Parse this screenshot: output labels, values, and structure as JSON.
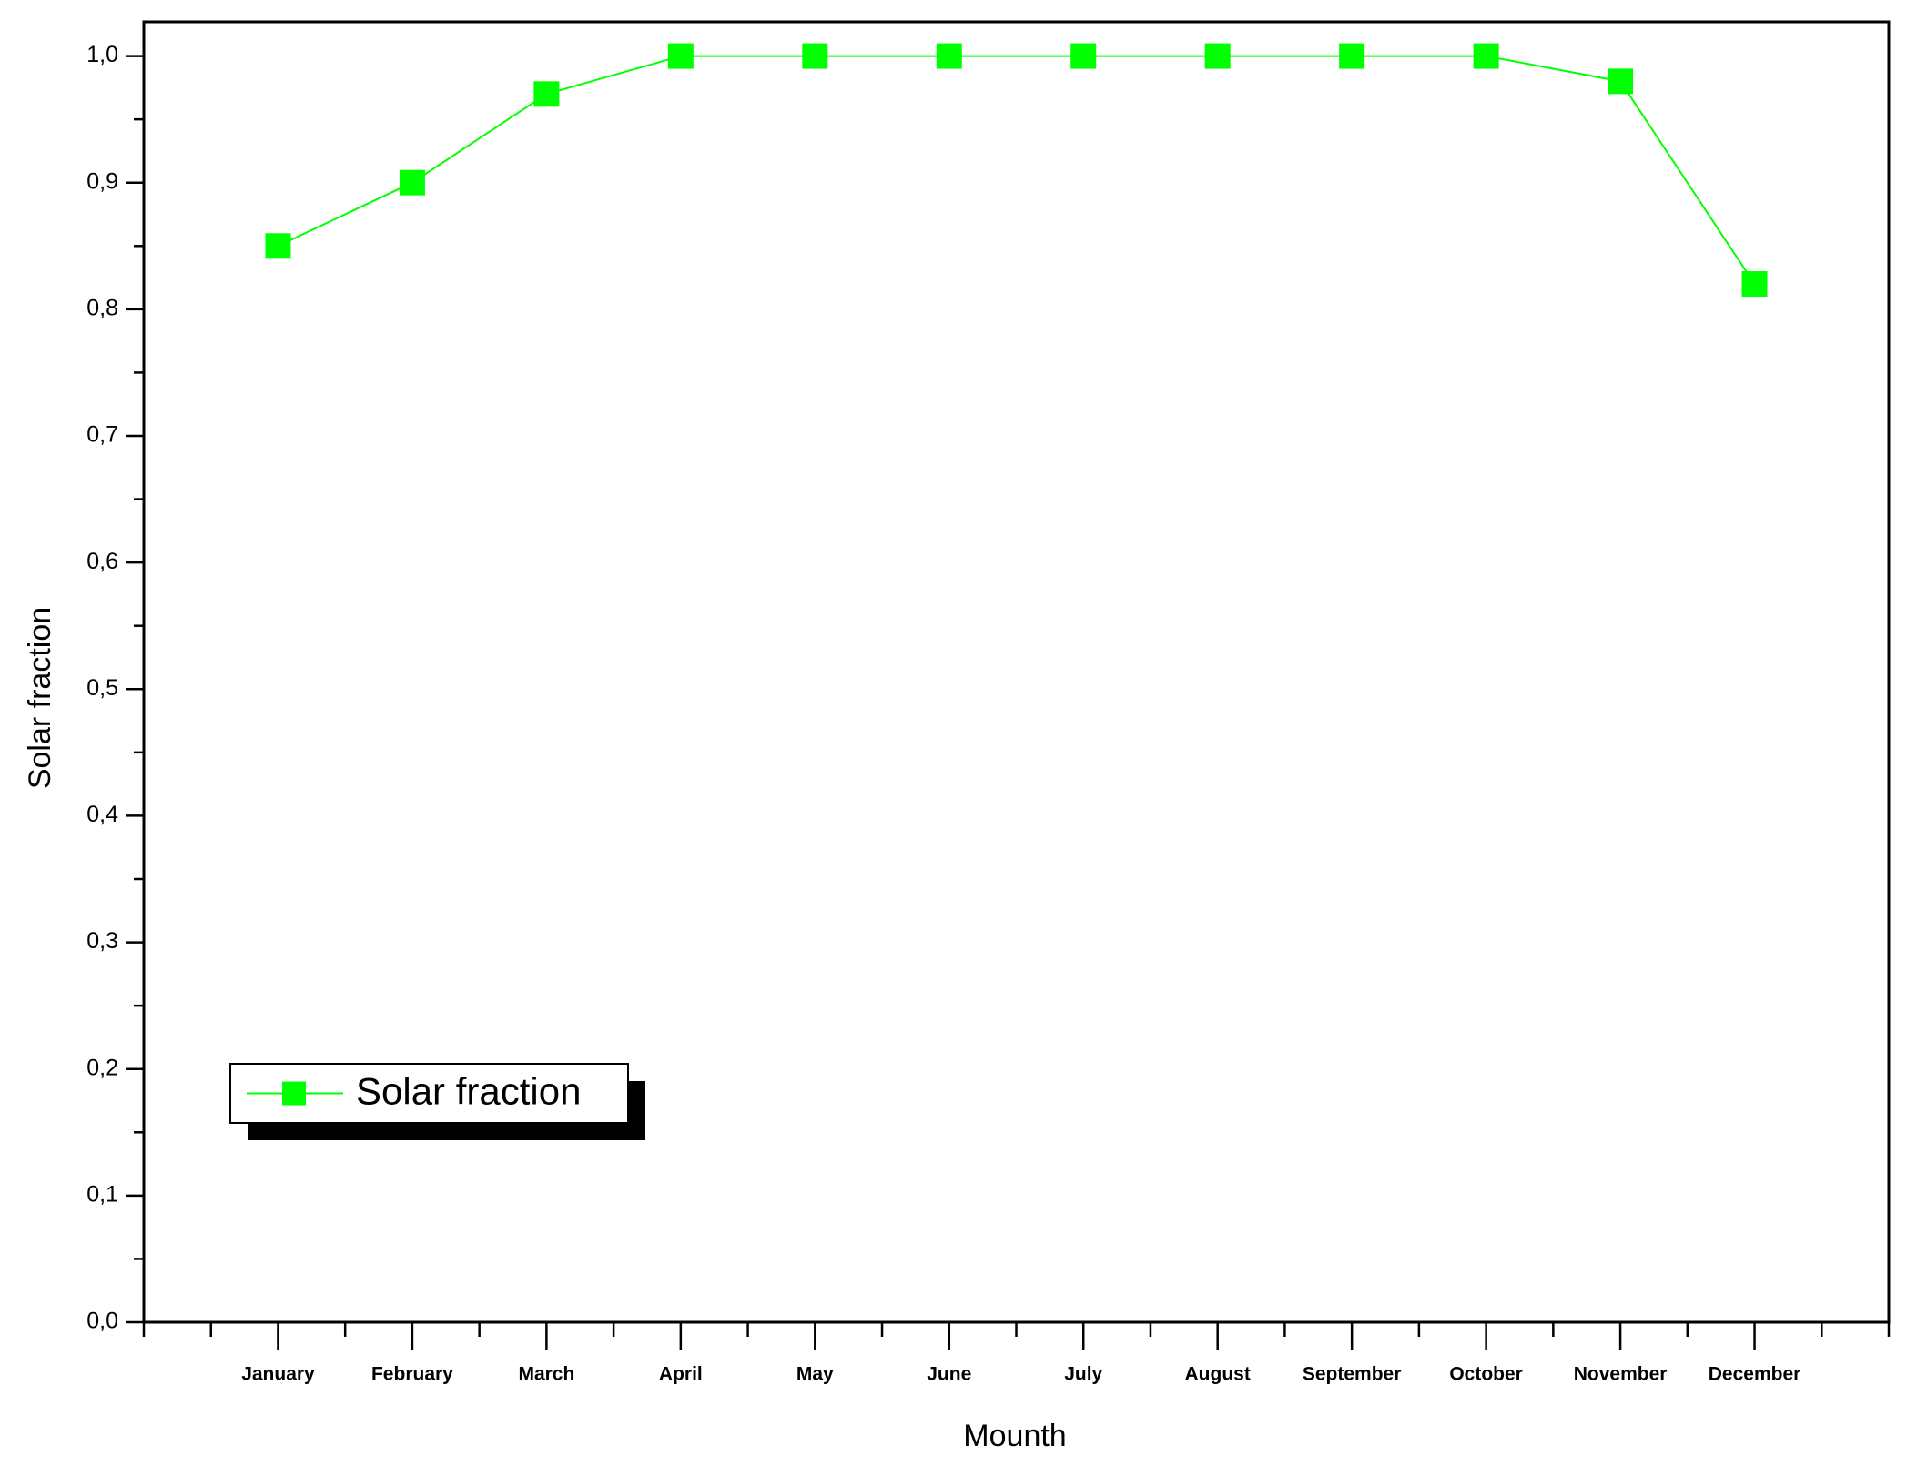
{
  "chart_data": {
    "type": "line",
    "x_label": "Mounth",
    "y_label": "Solar fraction",
    "categories": [
      "January",
      "February",
      "March",
      "April",
      "May",
      "June",
      "July",
      "August",
      "September",
      "October",
      "November",
      "December"
    ],
    "series": [
      {
        "name": "Solar fraction",
        "color": "#00ff00",
        "values": [
          0.85,
          0.9,
          0.97,
          1.0,
          1.0,
          1.0,
          1.0,
          1.0,
          1.0,
          1.0,
          0.98,
          0.82
        ]
      }
    ],
    "ylim": [
      0,
      1.027
    ],
    "yticks": [
      {
        "value": 0,
        "label": "0,0"
      },
      {
        "value": 0.1,
        "label": "0,1"
      },
      {
        "value": 0.2,
        "label": "0,2"
      },
      {
        "value": 0.3,
        "label": "0,3"
      },
      {
        "value": 0.4,
        "label": "0,4"
      },
      {
        "value": 0.5,
        "label": "0,5"
      },
      {
        "value": 0.6,
        "label": "0,6"
      },
      {
        "value": 0.7,
        "label": "0,7"
      },
      {
        "value": 0.8,
        "label": "0,8"
      },
      {
        "value": 0.9,
        "label": "0,9"
      },
      {
        "value": 1.0,
        "label": "1,0"
      }
    ],
    "grid": false,
    "legend_loc": "lower left"
  }
}
